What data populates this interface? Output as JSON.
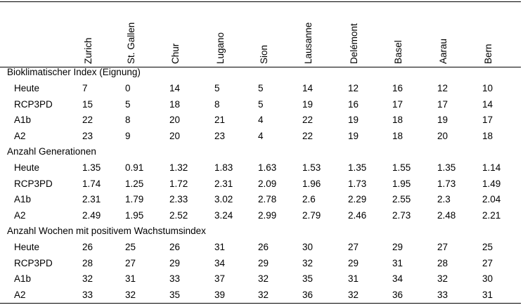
{
  "columns": [
    "Zurich",
    "St. Gallen",
    "Chur",
    "Lugano",
    "Sion",
    "Lausanne",
    "Delémont",
    "Basel",
    "Aarau",
    "Bern"
  ],
  "sections": [
    {
      "title": "Bioklimatischer Index (Eignung)",
      "rows": [
        {
          "label": "Heute",
          "values": [
            "7",
            "0",
            "14",
            "5",
            "5",
            "14",
            "12",
            "16",
            "12",
            "10"
          ]
        },
        {
          "label": "RCP3PD",
          "values": [
            "15",
            "5",
            "18",
            "8",
            "5",
            "19",
            "16",
            "17",
            "17",
            "14"
          ]
        },
        {
          "label": "A1b",
          "values": [
            "22",
            "8",
            "20",
            "21",
            "4",
            "22",
            "19",
            "18",
            "19",
            "17"
          ]
        },
        {
          "label": "A2",
          "values": [
            "23",
            "9",
            "20",
            "23",
            "4",
            "22",
            "19",
            "18",
            "20",
            "18"
          ]
        }
      ]
    },
    {
      "title": "Anzahl Generationen",
      "rows": [
        {
          "label": "Heute",
          "values": [
            "1.35",
            "0.91",
            "1.32",
            "1.83",
            "1.63",
            "1.53",
            "1.35",
            "1.55",
            "1.35",
            "1.14"
          ]
        },
        {
          "label": "RCP3PD",
          "values": [
            "1.74",
            "1.25",
            "1.72",
            "2.31",
            "2.09",
            "1.96",
            "1.73",
            "1.95",
            "1.73",
            "1.49"
          ]
        },
        {
          "label": "A1b",
          "values": [
            "2.31",
            "1.79",
            "2.33",
            "3.02",
            "2.78",
            "2.6",
            "2.29",
            "2.55",
            "2.3",
            "2.04"
          ]
        },
        {
          "label": "A2",
          "values": [
            "2.49",
            "1.95",
            "2.52",
            "3.24",
            "2.99",
            "2.79",
            "2.46",
            "2.73",
            "2.48",
            "2.21"
          ]
        }
      ]
    },
    {
      "title": "Anzahl Wochen mit positivem Wachstumsindex",
      "rows": [
        {
          "label": "Heute",
          "values": [
            "26",
            "25",
            "26",
            "31",
            "26",
            "30",
            "27",
            "29",
            "27",
            "25"
          ]
        },
        {
          "label": "RCP3PD",
          "values": [
            "28",
            "27",
            "29",
            "34",
            "29",
            "32",
            "29",
            "31",
            "28",
            "27"
          ]
        },
        {
          "label": "A1b",
          "values": [
            "32",
            "31",
            "33",
            "37",
            "32",
            "35",
            "31",
            "34",
            "32",
            "30"
          ]
        },
        {
          "label": "A2",
          "values": [
            "33",
            "32",
            "35",
            "39",
            "32",
            "36",
            "32",
            "36",
            "33",
            "31"
          ]
        }
      ]
    }
  ]
}
